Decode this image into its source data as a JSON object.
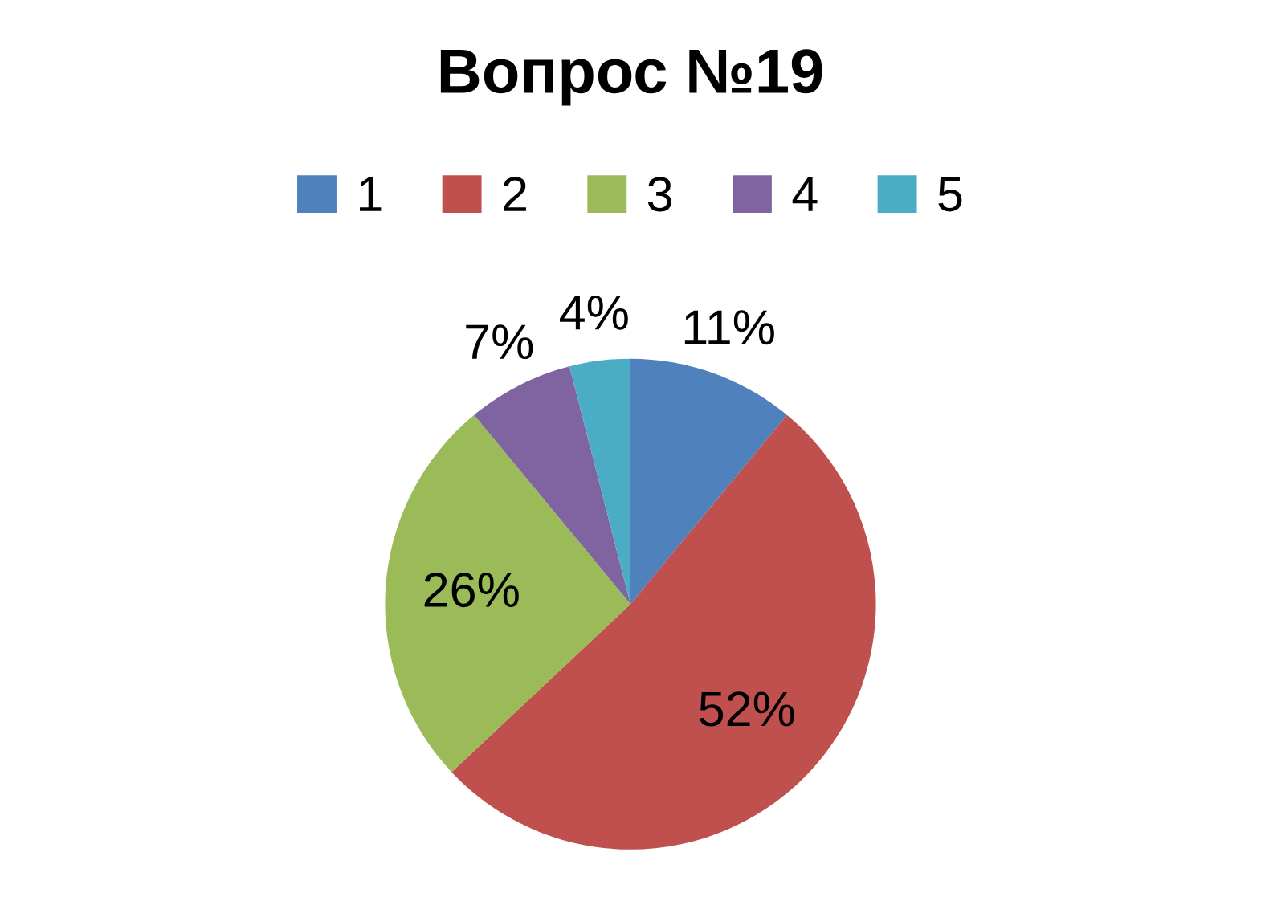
{
  "chart_data": {
    "type": "pie",
    "title": "Вопрос №19",
    "categories": [
      "1",
      "2",
      "3",
      "4",
      "5"
    ],
    "values": [
      11,
      52,
      26,
      7,
      4
    ],
    "colors": [
      "#4f81bd",
      "#c0504d",
      "#9bbb59",
      "#8064a2",
      "#4bacc6"
    ],
    "value_labels": [
      "11%",
      "52%",
      "26%",
      "7%",
      "4%"
    ],
    "legend": "top"
  }
}
